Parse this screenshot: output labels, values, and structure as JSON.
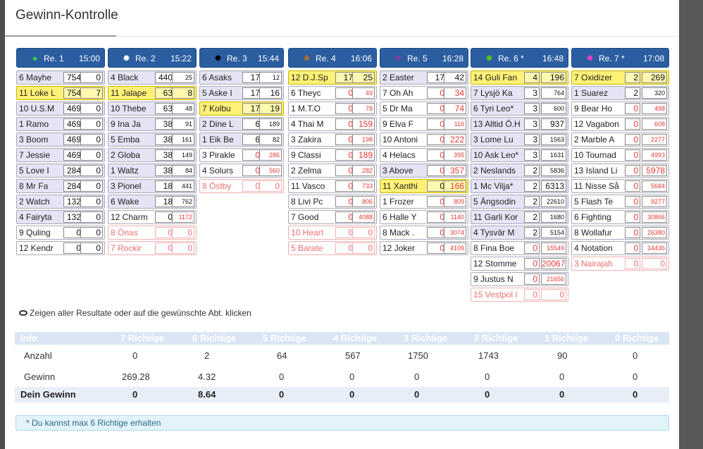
{
  "title": "Gewinn-Kontrolle",
  "races": [
    {
      "name": "Re. 1",
      "time": "15:00",
      "icon": "dot-green-icon",
      "color": "#2ecc40",
      "glyph": "●",
      "rows": [
        {
          "n": "6 Mayhe",
          "p": "754",
          "w": "0",
          "s": "g"
        },
        {
          "n": "11 Loke L",
          "p": "754",
          "w": "7",
          "s": "y"
        },
        {
          "n": "10 U.S.M",
          "p": "469",
          "w": "0",
          "s": "g"
        },
        {
          "n": "1 Ramo",
          "p": "469",
          "w": "0",
          "s": "g"
        },
        {
          "n": "3 Boom",
          "p": "469",
          "w": "0",
          "s": "g"
        },
        {
          "n": "7 Jessie",
          "p": "469",
          "w": "0",
          "s": "g"
        },
        {
          "n": "5 Love I",
          "p": "284",
          "w": "0",
          "s": "g"
        },
        {
          "n": "8 Mr Fa",
          "p": "284",
          "w": "0",
          "s": "g"
        },
        {
          "n": "2 Watch",
          "p": "132",
          "w": "0",
          "s": "g"
        },
        {
          "n": "4 Fairyta",
          "p": "132",
          "w": "0",
          "s": "g"
        },
        {
          "n": "9 Quling",
          "p": "0",
          "w": "0",
          "s": ""
        },
        {
          "n": "12 Kendr",
          "p": "0",
          "w": "0",
          "s": ""
        }
      ]
    },
    {
      "name": "Re. 2",
      "time": "15:22",
      "icon": "star-white-icon",
      "color": "#ffffff",
      "glyph": "✹",
      "rows": [
        {
          "n": "4 Black",
          "p": "440",
          "w": "25",
          "s": "g",
          "ws": true
        },
        {
          "n": "11 Jalape",
          "p": "63",
          "w": "8",
          "s": "y"
        },
        {
          "n": "10 Thebe",
          "p": "63",
          "w": "48",
          "s": "g",
          "ws": true
        },
        {
          "n": "9 Ina Ja",
          "p": "38",
          "w": "91",
          "s": "g",
          "ws": true
        },
        {
          "n": "5 Emba",
          "p": "38",
          "w": "161",
          "s": "g",
          "ws": true
        },
        {
          "n": "2 Globa",
          "p": "38",
          "w": "149",
          "s": "g",
          "ws": true
        },
        {
          "n": "1 Waltz",
          "p": "38",
          "w": "84",
          "s": "g",
          "ws": true
        },
        {
          "n": "3 Pionel",
          "p": "18",
          "w": "441",
          "s": "g",
          "ws": true
        },
        {
          "n": "6 Wake",
          "p": "18",
          "w": "762",
          "s": "g",
          "ws": true
        },
        {
          "n": "12 Charm",
          "p": "0",
          "w": "1172",
          "s": "",
          "wr": true,
          "ws": true
        },
        {
          "n": "8 Önas",
          "p": "0",
          "w": "0",
          "s": "scr"
        },
        {
          "n": "7 Rockir",
          "p": "0",
          "w": "0",
          "s": "scr"
        }
      ]
    },
    {
      "name": "Re. 3",
      "time": "15:44",
      "icon": "star-black-icon",
      "color": "#000000",
      "glyph": "✹",
      "rows": [
        {
          "n": "6 Asaks",
          "p": "17",
          "w": "12",
          "s": "g",
          "ws": true
        },
        {
          "n": "5 Aske I",
          "p": "17",
          "w": "16",
          "s": "g"
        },
        {
          "n": "7 Kolbu",
          "p": "17",
          "w": "19",
          "s": "y"
        },
        {
          "n": "2 Dine L",
          "p": "6",
          "w": "189",
          "s": "g",
          "ws": true
        },
        {
          "n": "1 Eik Be",
          "p": "6",
          "w": "82",
          "s": "g",
          "ws": true
        },
        {
          "n": "3 Pirakle",
          "p": "0",
          "w": "286",
          "s": "",
          "wr": true,
          "ws": true,
          "pr": true
        },
        {
          "n": "4 Solurs",
          "p": "0",
          "w": "560",
          "s": "",
          "wr": true,
          "ws": true,
          "pr": true
        },
        {
          "n": "8 Östby",
          "p": "0",
          "w": "0",
          "s": "scr"
        }
      ]
    },
    {
      "name": "Re. 4",
      "time": "16:06",
      "icon": "star-brown-icon",
      "color": "#a0703a",
      "glyph": "✹",
      "rows": [
        {
          "n": "12 D.J.Sp",
          "p": "17",
          "w": "25",
          "s": "y"
        },
        {
          "n": "6 Theyc",
          "p": "0",
          "w": "49",
          "s": "",
          "wr": true,
          "ws": true,
          "pr": true
        },
        {
          "n": "1 M.T.O",
          "p": "0",
          "w": "78",
          "s": "",
          "wr": true,
          "ws": true,
          "pr": true
        },
        {
          "n": "4 Thai M",
          "p": "0",
          "w": "159",
          "s": "",
          "wr": true,
          "pr": true
        },
        {
          "n": "3 Zakira",
          "p": "0",
          "w": "198",
          "s": "",
          "wr": true,
          "ws": true,
          "pr": true
        },
        {
          "n": "9 Classi",
          "p": "0",
          "w": "189",
          "s": "",
          "wr": true,
          "pr": true
        },
        {
          "n": "2 Zelma",
          "p": "0",
          "w": "282",
          "s": "",
          "wr": true,
          "ws": true,
          "pr": true
        },
        {
          "n": "11 Vasco",
          "p": "0",
          "w": "733",
          "s": "",
          "wr": true,
          "ws": true,
          "pr": true
        },
        {
          "n": "8 Livi Pc",
          "p": "0",
          "w": "806",
          "s": "",
          "wr": true,
          "ws": true,
          "pr": true
        },
        {
          "n": "7 Good",
          "p": "0",
          "w": "4088",
          "s": "",
          "wr": true,
          "ws": true,
          "pr": true
        },
        {
          "n": "10 Heart",
          "p": "0",
          "w": "0",
          "s": "scr"
        },
        {
          "n": "5 Barate",
          "p": "0",
          "w": "0",
          "s": "scr"
        }
      ]
    },
    {
      "name": "Re. 5",
      "time": "16:28",
      "icon": "star-purple-icon",
      "color": "#7b3fa0",
      "glyph": "✹",
      "rows": [
        {
          "n": "2 Easter",
          "p": "17",
          "w": "42",
          "s": "g"
        },
        {
          "n": "7 Oh Ah",
          "p": "0",
          "w": "34",
          "s": "",
          "wr": true,
          "pr": true
        },
        {
          "n": "5 Dr Ma",
          "p": "0",
          "w": "74",
          "s": "",
          "wr": true,
          "pr": true
        },
        {
          "n": "9 Elva F",
          "p": "0",
          "w": "116",
          "s": "",
          "wr": true,
          "ws": true,
          "pr": true
        },
        {
          "n": "10 Antoni",
          "p": "0",
          "w": "222",
          "s": "",
          "wr": true,
          "pr": true
        },
        {
          "n": "4 Helacs",
          "p": "0",
          "w": "395",
          "s": "",
          "wr": true,
          "ws": true,
          "pr": true
        },
        {
          "n": "3 Above",
          "p": "0",
          "w": "357",
          "s": "g",
          "wr": true,
          "pr": true
        },
        {
          "n": "11 Xanthi",
          "p": "0",
          "w": "166",
          "s": "y",
          "wr": true
        },
        {
          "n": "1 Frozer",
          "p": "0",
          "w": "809",
          "s": "",
          "wr": true,
          "ws": true,
          "pr": true
        },
        {
          "n": "6 Halle Y",
          "p": "0",
          "w": "1140",
          "s": "",
          "wr": true,
          "ws": true,
          "pr": true
        },
        {
          "n": "8 Mack .",
          "p": "0",
          "w": "3074",
          "s": "",
          "wr": true,
          "ws": true,
          "pr": true
        },
        {
          "n": "12 Joker",
          "p": "0",
          "w": "4109",
          "s": "",
          "wr": true,
          "ws": true,
          "pr": true
        }
      ]
    },
    {
      "name": "Re. 6 *",
      "time": "16:48",
      "icon": "star-green-icon",
      "color": "#55c020",
      "glyph": "✹",
      "rows": [
        {
          "n": "14 Guli Fan",
          "p": "4",
          "w": "196",
          "s": "y"
        },
        {
          "n": "7 Lysjö Ka",
          "p": "3",
          "w": "764",
          "s": "g",
          "ws": true
        },
        {
          "n": "6 Tyri Leo*",
          "p": "3",
          "w": "600",
          "s": "g",
          "ws": true
        },
        {
          "n": "13 Alltid Ö.H",
          "p": "3",
          "w": "937",
          "s": "g"
        },
        {
          "n": "3 Lome Lu",
          "p": "3",
          "w": "1563",
          "s": "g",
          "ws": true
        },
        {
          "n": "10 Ask Leo*",
          "p": "3",
          "w": "1631",
          "s": "g",
          "ws": true
        },
        {
          "n": "2 Neslands",
          "p": "2",
          "w": "5836",
          "s": "g",
          "ws": true
        },
        {
          "n": "1 Mc Vilja*",
          "p": "2",
          "w": "6313",
          "s": "g"
        },
        {
          "n": "5 Ängsodin",
          "p": "2",
          "w": "22610",
          "s": "g",
          "ws": true
        },
        {
          "n": "11 Garli Kor",
          "p": "2",
          "w": "1680",
          "s": "g",
          "ws": true
        },
        {
          "n": "4 Tysvär M",
          "p": "2",
          "w": "5154",
          "s": "g",
          "ws": true
        },
        {
          "n": "8 Fina Boe",
          "p": "0",
          "w": "15549",
          "s": "",
          "wr": true,
          "ws": true,
          "pr": true
        },
        {
          "n": "12 Stomme",
          "p": "0",
          "w": "20067",
          "s": "",
          "wr": true,
          "pr": true
        },
        {
          "n": "9 Justus N",
          "p": "0",
          "w": "21656",
          "s": "",
          "wr": true,
          "ws": true,
          "pr": true
        },
        {
          "n": "15 Vestpol I",
          "p": "0",
          "w": "0",
          "s": "scr"
        }
      ]
    },
    {
      "name": "Re. 7 *",
      "time": "17:08",
      "icon": "star-pink-icon",
      "color": "#e040c0",
      "glyph": "✹",
      "rows": [
        {
          "n": "7 Oxidizer",
          "p": "2",
          "w": "269",
          "s": "y"
        },
        {
          "n": "1 Suarez",
          "p": "2",
          "w": "320",
          "s": "g",
          "ws": true
        },
        {
          "n": "9 Bear Ho",
          "p": "0",
          "w": "498",
          "s": "",
          "wr": true,
          "ws": true,
          "pr": true
        },
        {
          "n": "12 Vagabon",
          "p": "0",
          "w": "608",
          "s": "",
          "wr": true,
          "ws": true,
          "pr": true
        },
        {
          "n": "2 Marble A",
          "p": "0",
          "w": "2277",
          "s": "",
          "wr": true,
          "ws": true,
          "pr": true
        },
        {
          "n": "10 Tournad",
          "p": "0",
          "w": "4993",
          "s": "",
          "wr": true,
          "ws": true,
          "pr": true
        },
        {
          "n": "13 Island Li",
          "p": "0",
          "w": "5978",
          "s": "",
          "wr": true,
          "pr": true
        },
        {
          "n": "11 Nisse Så",
          "p": "0",
          "w": "5684",
          "s": "",
          "wr": true,
          "ws": true,
          "pr": true
        },
        {
          "n": "5 Flash Te",
          "p": "0",
          "w": "9277",
          "s": "",
          "wr": true,
          "ws": true,
          "pr": true
        },
        {
          "n": "6 Fighting",
          "p": "0",
          "w": "30866",
          "s": "",
          "wr": true,
          "ws": true,
          "pr": true
        },
        {
          "n": "8 Wollafur",
          "p": "0",
          "w": "26380",
          "s": "",
          "wr": true,
          "ws": true,
          "pr": true
        },
        {
          "n": "4 Notation",
          "p": "0",
          "w": "34436",
          "s": "",
          "wr": true,
          "ws": true,
          "pr": true
        },
        {
          "n": "3 Nairajah",
          "p": "0",
          "w": "0",
          "s": "scr"
        }
      ]
    }
  ],
  "hint": "Zeigen aller Resultate oder auf die gewünschte Abt. klicken",
  "table": {
    "headers": [
      "Info",
      "7 Richtige",
      "6 Richtige",
      "5 Richtige",
      "4 Richtige",
      "3 Richtige",
      "2 Richtige",
      "1 Richtige",
      "0 Richtige"
    ],
    "rows": [
      {
        "label": "Anzahl",
        "values": [
          "0",
          "2",
          "64",
          "567",
          "1750",
          "1743",
          "90",
          "0"
        ]
      },
      {
        "label": "Gewinn",
        "values": [
          "269.28",
          "4.32",
          "0",
          "0",
          "0",
          "0",
          "0",
          "0"
        ]
      }
    ],
    "total": {
      "label": "Dein Gewinn",
      "values": [
        "0",
        "8.64",
        "0",
        "0",
        "0",
        "0",
        "0",
        "0"
      ]
    }
  },
  "note": "* Du kannst max 6 Richtige erhalten"
}
